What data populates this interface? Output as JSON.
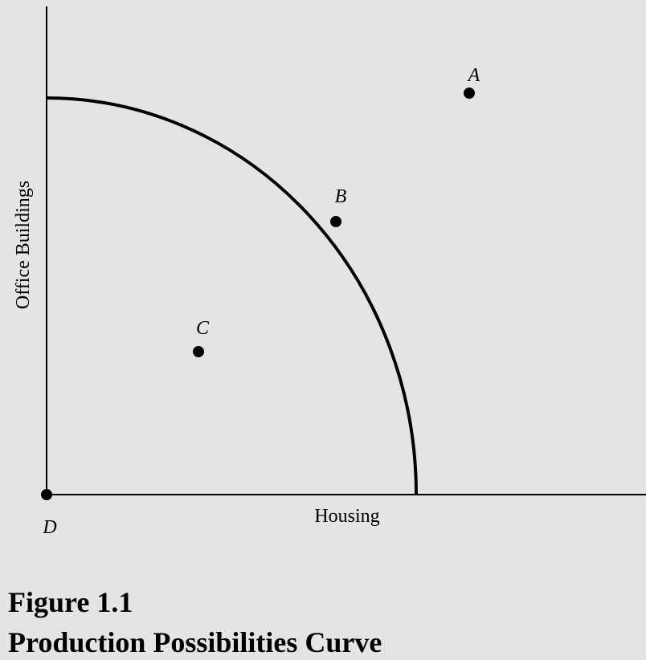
{
  "axes": {
    "x_label": "Housing",
    "y_label": "Office Buildings"
  },
  "points": [
    {
      "label": "A"
    },
    {
      "label": "B"
    },
    {
      "label": "C"
    },
    {
      "label": "D"
    }
  ],
  "caption": {
    "figure": "Figure 1.1",
    "title": "Production Possibilities Curve"
  }
}
